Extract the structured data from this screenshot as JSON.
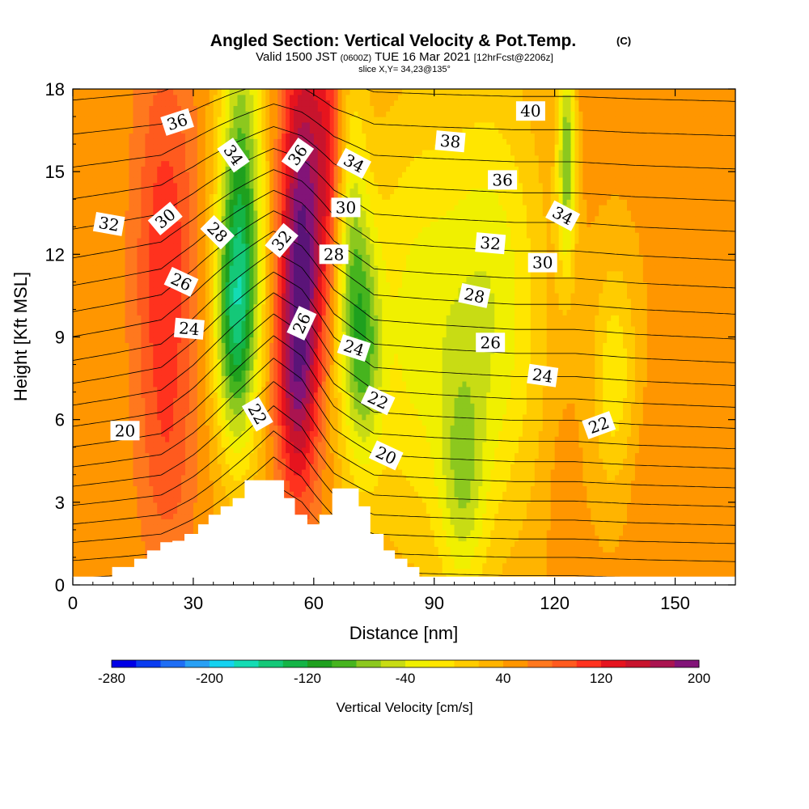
{
  "chart_data": {
    "type": "heatmap",
    "title": "Angled Section: Vertical Velocity & Pot.Temp.",
    "copyright_mark": "(C)",
    "subtitle": {
      "valid": "Valid 1500 JST",
      "utc": "(0600Z)",
      "date": "TUE 16 Mar 2021",
      "forecast": "[12hrFcst@2206z]"
    },
    "slice_note": "slice X,Y= 34,23@135°",
    "xlabel": "Distance [nm]",
    "ylabel": "Height [Kft MSL]",
    "xlim": [
      0,
      165
    ],
    "ylim": [
      0,
      18
    ],
    "x_ticks": [
      "0",
      "30",
      "60",
      "90",
      "120",
      "150"
    ],
    "y_ticks": [
      "0",
      "3",
      "6",
      "9",
      "12",
      "15",
      "18"
    ],
    "colorbar": {
      "label": "Vertical Velocity [cm/s]",
      "min": -280,
      "max": 200,
      "step": 20,
      "tick_labels": [
        "-280",
        "-200",
        "-120",
        "-40",
        "40",
        "120",
        "200"
      ],
      "colors": [
        "#0000e6",
        "#0a3cf0",
        "#1e6ef5",
        "#28a0f5",
        "#14d2f0",
        "#14dcb4",
        "#14c878",
        "#14b446",
        "#1ea01e",
        "#46b41e",
        "#8cc81e",
        "#c8dc14",
        "#f0f000",
        "#ffe600",
        "#ffcc00",
        "#ffb400",
        "#ff9600",
        "#ff781e",
        "#ff5a1e",
        "#ff321e",
        "#e6141e",
        "#c8142d",
        "#aa1450",
        "#821478",
        "#5a1478"
      ]
    },
    "terrain_profile": [
      [
        0,
        0.3
      ],
      [
        9.8,
        0.3
      ],
      [
        9.8,
        0.65
      ],
      [
        15,
        0.65
      ],
      [
        15,
        0.65
      ],
      [
        15.3,
        0.65
      ],
      [
        15.3,
        0.95
      ],
      [
        18.5,
        0.95
      ],
      [
        18.5,
        1.25
      ],
      [
        21.8,
        1.25
      ],
      [
        21.8,
        1.55
      ],
      [
        24.8,
        1.55
      ],
      [
        24.8,
        1.6
      ],
      [
        27.8,
        1.6
      ],
      [
        27.8,
        1.85
      ],
      [
        31.2,
        1.85
      ],
      [
        31.2,
        2.2
      ],
      [
        33.8,
        2.2
      ],
      [
        33.8,
        2.55
      ],
      [
        36.8,
        2.55
      ],
      [
        36.8,
        2.85
      ],
      [
        39.8,
        2.85
      ],
      [
        39.8,
        3.15
      ],
      [
        42.8,
        3.15
      ],
      [
        42.8,
        3.8
      ],
      [
        52.6,
        3.8
      ],
      [
        52.6,
        3.15
      ],
      [
        55.3,
        3.15
      ],
      [
        55.3,
        2.55
      ],
      [
        58.4,
        2.55
      ],
      [
        58.4,
        2.2
      ],
      [
        61.4,
        2.2
      ],
      [
        61.4,
        2.55
      ],
      [
        64.6,
        2.55
      ],
      [
        64.6,
        3.5
      ],
      [
        71.2,
        3.5
      ],
      [
        71.2,
        2.85
      ],
      [
        74.1,
        2.85
      ],
      [
        74.1,
        1.85
      ],
      [
        77.4,
        1.85
      ],
      [
        77.4,
        1.25
      ],
      [
        80.2,
        1.25
      ],
      [
        80.2,
        0.95
      ],
      [
        83.3,
        0.95
      ],
      [
        83.3,
        0.65
      ],
      [
        86.3,
        0.65
      ],
      [
        86.3,
        0.3
      ],
      [
        165,
        0.3
      ]
    ],
    "w_field": {
      "background_value": 45,
      "features": [
        {
          "x": 23,
          "y": 11.5,
          "sx": 5.5,
          "sy": 6.0,
          "value": 120
        },
        {
          "x": 23,
          "y": 15.0,
          "sx": 5.0,
          "sy": 4.0,
          "value": 40
        },
        {
          "x": 24,
          "y": 3.8,
          "sx": 4.5,
          "sy": 2.2,
          "value": 60
        },
        {
          "x": 42,
          "y": 13.5,
          "sx": 4.0,
          "sy": 5.5,
          "value": -95
        },
        {
          "x": 40,
          "y": 9.5,
          "sx": 3.5,
          "sy": 3.0,
          "value": -55
        },
        {
          "x": 57,
          "y": 12.5,
          "sx": 3.8,
          "sy": 5.5,
          "value": 195
        },
        {
          "x": 55,
          "y": 7.5,
          "sx": 3.5,
          "sy": 3.0,
          "value": 110
        },
        {
          "x": 64,
          "y": 15.5,
          "sx": 3.0,
          "sy": 3.5,
          "value": 120
        },
        {
          "x": 69,
          "y": 12.0,
          "sx": 3.0,
          "sy": 4.5,
          "value": -45
        },
        {
          "x": 73,
          "y": 8.5,
          "sx": 3.0,
          "sy": 3.0,
          "value": -40
        },
        {
          "x": 85,
          "y": 9.5,
          "sx": 10.0,
          "sy": 6.0,
          "value": -22
        },
        {
          "x": 105,
          "y": 10.0,
          "sx": 9.0,
          "sy": 6.0,
          "value": -30
        },
        {
          "x": 123,
          "y": 15.5,
          "sx": 1.6,
          "sy": 2.8,
          "value": -75
        },
        {
          "x": 130,
          "y": 17.2,
          "sx": 3.5,
          "sy": 1.5,
          "value": 55
        },
        {
          "x": 122,
          "y": 3.0,
          "sx": 2.5,
          "sy": 2.5,
          "value": 60
        },
        {
          "x": 145,
          "y": 3.8,
          "sx": 6.0,
          "sy": 2.5,
          "value": 60
        },
        {
          "x": 135,
          "y": 7.5,
          "sx": 4.0,
          "sy": 3.0,
          "value": -15
        },
        {
          "x": 158,
          "y": 10.0,
          "sx": 5.0,
          "sy": 3.5,
          "value": 55
        },
        {
          "x": 97,
          "y": 3.5,
          "sx": 4.0,
          "sy": 3.0,
          "value": -20
        }
      ]
    },
    "theta_field": {
      "levels_K": [
        17,
        18,
        19,
        20,
        21,
        22,
        23,
        24,
        25,
        26,
        27,
        28,
        29,
        30,
        31,
        32,
        33,
        34,
        35,
        36,
        37,
        38,
        39,
        40
      ],
      "base_lapse": 1.22,
      "base_offset": 19.0,
      "x_offsets": [
        [
          0,
          1.3
        ],
        [
          10,
          1.0
        ],
        [
          22,
          0.6
        ],
        [
          30,
          -0.5
        ],
        [
          40,
          -2.2
        ],
        [
          50,
          -3.8
        ],
        [
          57,
          -2.9
        ],
        [
          65,
          -0.7
        ],
        [
          75,
          0.6
        ],
        [
          90,
          0.8
        ],
        [
          110,
          1.0
        ],
        [
          125,
          1.0
        ],
        [
          140,
          1.2
        ],
        [
          165,
          1.4
        ]
      ]
    },
    "contour_labels": [
      {
        "text": "36",
        "x": 26,
        "y": 16.8,
        "angle": -18
      },
      {
        "text": "34",
        "x": 40,
        "y": 15.6,
        "angle": 55
      },
      {
        "text": "36",
        "x": 56,
        "y": 15.6,
        "angle": -55
      },
      {
        "text": "34",
        "x": 70,
        "y": 15.3,
        "angle": 28
      },
      {
        "text": "38",
        "x": 94,
        "y": 16.1,
        "angle": 5
      },
      {
        "text": "40",
        "x": 114,
        "y": 17.2,
        "angle": 0
      },
      {
        "text": "36",
        "x": 107,
        "y": 14.7,
        "angle": 0
      },
      {
        "text": "32",
        "x": 9,
        "y": 13.1,
        "angle": 10
      },
      {
        "text": "30",
        "x": 23,
        "y": 13.3,
        "angle": -40
      },
      {
        "text": "28",
        "x": 36,
        "y": 12.8,
        "angle": 45
      },
      {
        "text": "32",
        "x": 52,
        "y": 12.5,
        "angle": -50
      },
      {
        "text": "30",
        "x": 68,
        "y": 13.7,
        "angle": 0
      },
      {
        "text": "28",
        "x": 65,
        "y": 12.0,
        "angle": 0
      },
      {
        "text": "32",
        "x": 104,
        "y": 12.4,
        "angle": 5
      },
      {
        "text": "34",
        "x": 122,
        "y": 13.4,
        "angle": 28
      },
      {
        "text": "30",
        "x": 117,
        "y": 11.7,
        "angle": 0
      },
      {
        "text": "26",
        "x": 27,
        "y": 11.0,
        "angle": 25
      },
      {
        "text": "24",
        "x": 29,
        "y": 9.3,
        "angle": 5
      },
      {
        "text": "26",
        "x": 57,
        "y": 9.5,
        "angle": -65
      },
      {
        "text": "24",
        "x": 70,
        "y": 8.6,
        "angle": 18
      },
      {
        "text": "28",
        "x": 100,
        "y": 10.5,
        "angle": 12
      },
      {
        "text": "26",
        "x": 104,
        "y": 8.8,
        "angle": 0
      },
      {
        "text": "24",
        "x": 117,
        "y": 7.6,
        "angle": 8
      },
      {
        "text": "22",
        "x": 46,
        "y": 6.2,
        "angle": 60
      },
      {
        "text": "22",
        "x": 76,
        "y": 6.7,
        "angle": 25
      },
      {
        "text": "22",
        "x": 131,
        "y": 5.8,
        "angle": -20
      },
      {
        "text": "20",
        "x": 13,
        "y": 5.6,
        "angle": 0
      },
      {
        "text": "20",
        "x": 78,
        "y": 4.7,
        "angle": 25
      }
    ]
  }
}
